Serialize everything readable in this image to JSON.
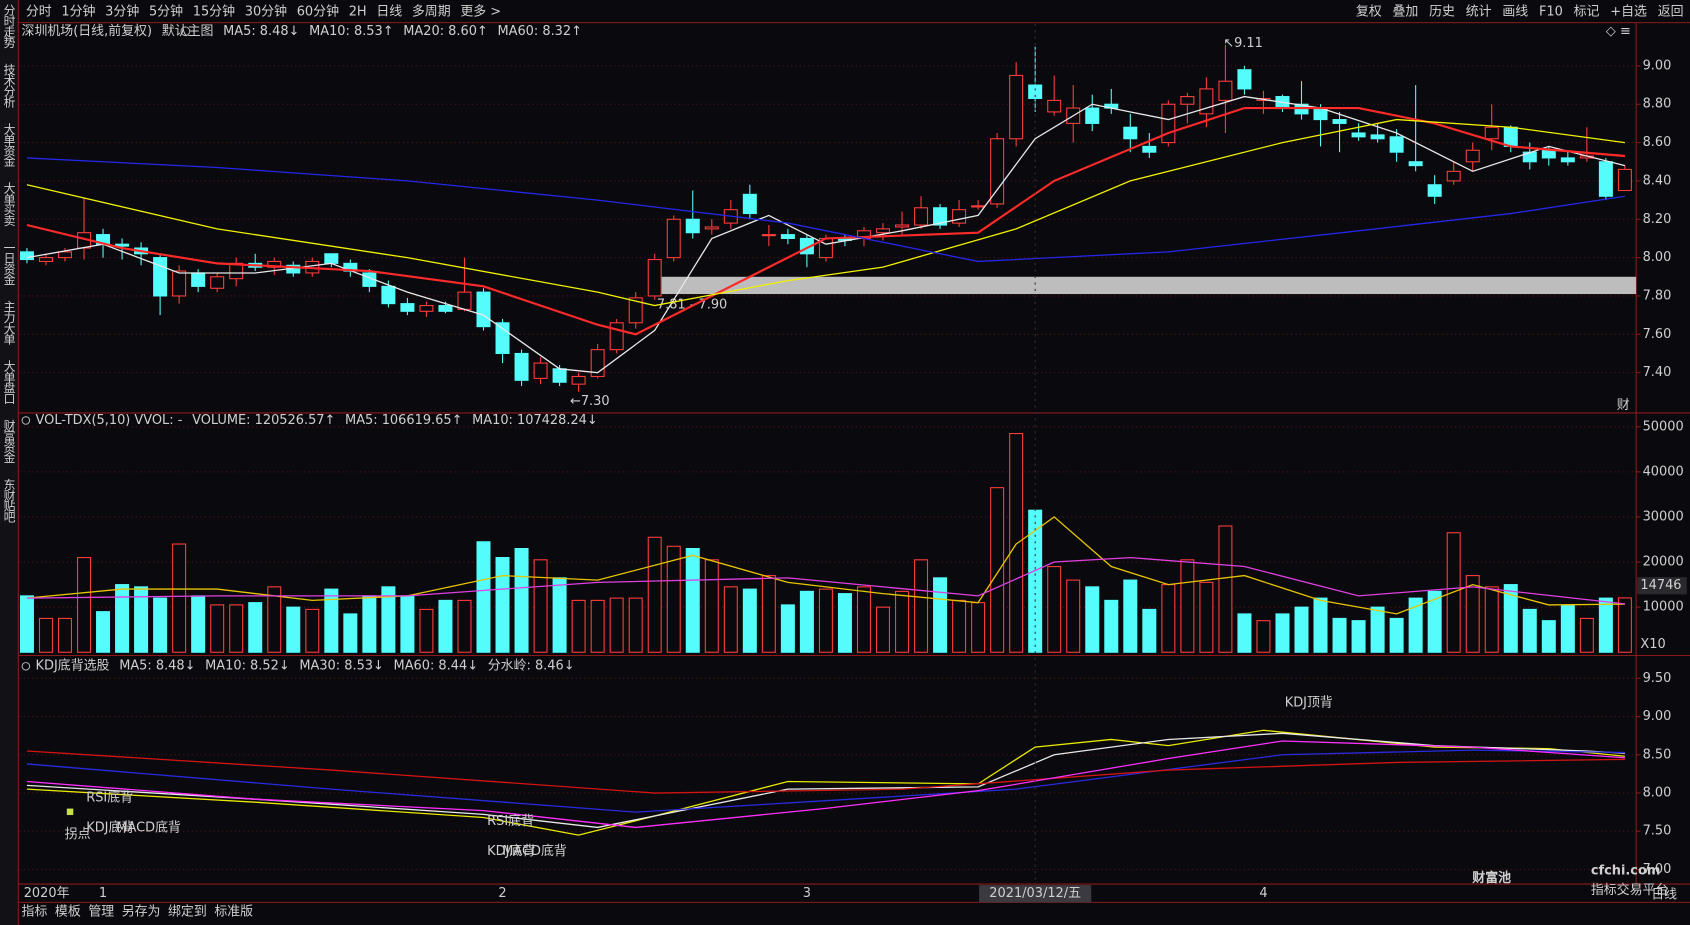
{
  "toolbar": {
    "periods": [
      "分时",
      "1分钟",
      "3分钟",
      "5分钟",
      "15分钟",
      "30分钟",
      "60分钟",
      "2H",
      "日线",
      "多周期",
      "更多 >"
    ],
    "active_period": 8,
    "tools": [
      "复权",
      "叠加",
      "历史",
      "统计",
      "画线",
      "F10",
      "标记",
      "+自选",
      "返回"
    ]
  },
  "sidebar": {
    "items": [
      "分时走势",
      "技术分析",
      "大单资金",
      "大单买卖",
      "一日资金",
      "主力大单",
      "大单盘口",
      "财富资金",
      "东财贴吧"
    ],
    "active": 1
  },
  "chart_data": [
    {
      "type": "candlestick",
      "title": "深圳机场(日线,前复权)",
      "subtitle": "默认主图",
      "up_color": "#ff3c3c",
      "down_color": "#54fcfc",
      "open": [
        8.03,
        7.98,
        8.0,
        8.05,
        8.12,
        8.07,
        8.05,
        8.0,
        7.8,
        7.92,
        7.84,
        7.89,
        7.97,
        7.95,
        7.96,
        7.92,
        8.02,
        7.97,
        7.92,
        7.85,
        7.76,
        7.72,
        7.75,
        7.73,
        7.82,
        7.66,
        7.5,
        7.37,
        7.42,
        7.34,
        7.38,
        7.52,
        7.66,
        7.8,
        8.0,
        8.2,
        8.15,
        8.18,
        8.33,
        8.12,
        8.12,
        8.1,
        8.0,
        8.1,
        8.1,
        8.13,
        8.16,
        8.17,
        8.26,
        8.18,
        8.27,
        8.28,
        8.62,
        8.9,
        8.76,
        8.7,
        8.78,
        8.8,
        8.68,
        8.58,
        8.6,
        8.8,
        8.75,
        8.82,
        8.98,
        8.82,
        8.84,
        8.8,
        8.78,
        8.72,
        8.65,
        8.64,
        8.63,
        8.5,
        8.38,
        8.4,
        8.5,
        8.62,
        8.68,
        8.55,
        8.56,
        8.52,
        8.52,
        8.5,
        8.35
      ],
      "high": [
        8.05,
        8.02,
        8.05,
        8.31,
        8.15,
        8.1,
        8.08,
        8.02,
        7.96,
        7.94,
        7.92,
        8.0,
        8.02,
        8.0,
        7.98,
        8.0,
        8.02,
        7.99,
        7.94,
        7.88,
        7.79,
        7.77,
        7.77,
        8.0,
        7.84,
        7.68,
        7.52,
        7.48,
        7.44,
        7.4,
        7.55,
        7.68,
        7.82,
        8.02,
        8.22,
        8.35,
        8.2,
        8.3,
        8.38,
        8.17,
        8.15,
        8.12,
        8.12,
        8.12,
        8.16,
        8.18,
        8.24,
        8.32,
        8.28,
        8.3,
        8.3,
        8.65,
        9.02,
        9.1,
        8.95,
        8.9,
        8.85,
        8.88,
        8.75,
        8.65,
        8.82,
        8.86,
        8.94,
        9.11,
        9.0,
        8.87,
        8.85,
        8.92,
        8.8,
        8.76,
        8.7,
        8.7,
        8.67,
        8.9,
        8.43,
        8.5,
        8.6,
        8.8,
        8.69,
        8.6,
        8.58,
        8.56,
        8.68,
        8.52,
        8.48
      ],
      "low": [
        7.97,
        7.96,
        7.98,
        7.99,
        8.0,
        7.99,
        7.96,
        7.7,
        7.76,
        7.82,
        7.82,
        7.85,
        7.93,
        7.91,
        7.9,
        7.9,
        7.95,
        7.9,
        7.82,
        7.74,
        7.7,
        7.69,
        7.71,
        7.72,
        7.62,
        7.45,
        7.33,
        7.34,
        7.33,
        7.3,
        7.37,
        7.5,
        7.63,
        7.78,
        7.98,
        8.1,
        8.12,
        8.15,
        8.2,
        8.06,
        8.07,
        7.95,
        7.98,
        8.06,
        8.06,
        8.09,
        8.12,
        8.15,
        8.15,
        8.16,
        8.25,
        8.26,
        8.58,
        8.76,
        8.74,
        8.6,
        8.66,
        8.75,
        8.55,
        8.52,
        8.58,
        8.7,
        8.68,
        8.65,
        8.85,
        8.75,
        8.76,
        8.72,
        8.58,
        8.55,
        8.61,
        8.6,
        8.5,
        8.45,
        8.28,
        8.38,
        8.45,
        8.56,
        8.55,
        8.46,
        8.48,
        8.48,
        8.5,
        8.3,
        8.35
      ],
      "close": [
        7.99,
        8.0,
        8.03,
        8.13,
        8.07,
        8.06,
        8.02,
        7.8,
        7.93,
        7.85,
        7.9,
        7.97,
        7.95,
        7.98,
        7.92,
        7.98,
        7.97,
        7.93,
        7.85,
        7.76,
        7.72,
        7.75,
        7.72,
        7.82,
        7.64,
        7.5,
        7.36,
        7.45,
        7.35,
        7.38,
        7.52,
        7.66,
        7.79,
        7.99,
        8.2,
        8.13,
        8.16,
        8.25,
        8.23,
        8.12,
        8.1,
        8.02,
        8.1,
        8.09,
        8.14,
        8.15,
        8.17,
        8.26,
        8.17,
        8.25,
        8.27,
        8.62,
        8.95,
        8.83,
        8.82,
        8.78,
        8.7,
        8.78,
        8.62,
        8.55,
        8.8,
        8.84,
        8.88,
        8.92,
        8.88,
        8.83,
        8.78,
        8.75,
        8.72,
        8.7,
        8.63,
        8.62,
        8.55,
        8.48,
        8.32,
        8.45,
        8.56,
        8.68,
        8.58,
        8.5,
        8.52,
        8.5,
        8.53,
        8.32,
        8.46
      ],
      "series": [
        {
          "name": "MA5: 8.48↓",
          "color": "#e8e8e8",
          "x": [
            0,
            4,
            8,
            12,
            16,
            20,
            24,
            28,
            30,
            33,
            36,
            39,
            42,
            46,
            50,
            53,
            56,
            60,
            64,
            68,
            72,
            76,
            80,
            84
          ],
          "values": [
            8.0,
            8.07,
            7.92,
            7.92,
            7.97,
            7.82,
            7.7,
            7.42,
            7.4,
            7.62,
            8.1,
            8.22,
            8.07,
            8.14,
            8.22,
            8.62,
            8.8,
            8.72,
            8.84,
            8.78,
            8.65,
            8.45,
            8.58,
            8.48
          ]
        },
        {
          "name": "MA10: 8.53↑",
          "color": "#ff2a2a",
          "x": [
            0,
            5,
            10,
            18,
            24,
            30,
            32,
            38,
            42,
            50,
            54,
            60,
            64,
            70,
            74,
            78,
            84
          ],
          "values": [
            8.17,
            8.05,
            7.97,
            7.93,
            7.85,
            7.65,
            7.6,
            7.9,
            8.1,
            8.13,
            8.4,
            8.65,
            8.78,
            8.78,
            8.7,
            8.58,
            8.53
          ]
        },
        {
          "name": "MA20: 8.60↑",
          "color": "#f0f000",
          "x": [
            0,
            10,
            20,
            30,
            33,
            40,
            45,
            52,
            58,
            66,
            72,
            78,
            84
          ],
          "values": [
            8.38,
            8.15,
            8.0,
            7.82,
            7.75,
            7.88,
            7.95,
            8.15,
            8.4,
            8.6,
            8.72,
            8.68,
            8.6
          ]
        },
        {
          "name": "MA60: 8.32↑",
          "color": "#2626e6",
          "x": [
            0,
            10,
            20,
            30,
            40,
            50,
            60,
            70,
            78,
            84
          ],
          "values": [
            8.52,
            8.47,
            8.4,
            8.3,
            8.18,
            7.98,
            8.03,
            8.14,
            8.23,
            8.32
          ]
        }
      ],
      "ylim": [
        7.19,
        9.22
      ],
      "yticks": [
        {
          "value": 7.4,
          "label": "7.40"
        },
        {
          "value": 7.6,
          "label": "7.60"
        },
        {
          "value": 7.8,
          "label": "7.80"
        },
        {
          "value": 8.0,
          "label": "8.00"
        },
        {
          "value": 8.2,
          "label": "8.20"
        },
        {
          "value": 8.4,
          "label": "8.40"
        },
        {
          "value": 8.6,
          "label": "8.60"
        },
        {
          "value": 8.8,
          "label": "8.80"
        },
        {
          "value": 9.0,
          "label": "9.00"
        }
      ],
      "grid": true,
      "band": {
        "start": 33,
        "low": 7.81,
        "high": 7.9,
        "label": "7.81 - 7.90",
        "color": "#bdbdbd"
      },
      "annotations": [
        {
          "index": 29,
          "at": "low",
          "value": 7.3,
          "label": "←7.30"
        },
        {
          "index": 63,
          "at": "high",
          "value": 9.11,
          "label": "↖9.11"
        }
      ],
      "corner_label": "财"
    },
    {
      "type": "bar",
      "title": "VOL-TDX(5,10) VVOL: -",
      "legend": "VOLUME: 120526.57↑",
      "legend_color": "#e8c400",
      "values": [
        12500,
        7500,
        7500,
        21000,
        9000,
        15000,
        14500,
        12000,
        24000,
        12500,
        10500,
        10500,
        11000,
        14500,
        10000,
        9500,
        14000,
        8500,
        12500,
        14500,
        12500,
        9500,
        11500,
        11500,
        24500,
        21000,
        23000,
        20500,
        16500,
        11500,
        11500,
        12000,
        12000,
        25500,
        23500,
        23000,
        20500,
        14500,
        14000,
        17000,
        10500,
        13500,
        14000,
        13000,
        14500,
        10000,
        13500,
        20500,
        16500,
        11500,
        11000,
        36500,
        48500,
        31500,
        19000,
        16000,
        14500,
        11500,
        16000,
        9500,
        15000,
        20500,
        15500,
        28000,
        8500,
        7000,
        8500,
        10000,
        12000,
        7500,
        7000,
        10000,
        7500,
        12000,
        13500,
        26500,
        17000,
        14500,
        15000,
        9500,
        7000,
        10500,
        7500,
        12000,
        12053
      ],
      "series": [
        {
          "name": "MA5: 106619.65↑",
          "color": "#e8c400",
          "x": [
            0,
            5,
            10,
            15,
            20,
            25,
            30,
            35,
            40,
            45,
            50,
            52,
            54,
            57,
            60,
            64,
            68,
            72,
            76,
            80,
            84
          ],
          "values": [
            12000,
            14000,
            14000,
            11500,
            12500,
            17000,
            16000,
            21500,
            15500,
            13000,
            11000,
            24000,
            30000,
            19000,
            15000,
            17000,
            11500,
            8500,
            15000,
            10500,
            10662
          ]
        },
        {
          "name": "MA10: 107428.24↓",
          "color": "#e040e0",
          "x": [
            0,
            10,
            20,
            30,
            40,
            50,
            54,
            58,
            64,
            70,
            76,
            84
          ],
          "values": [
            12000,
            12500,
            12500,
            15500,
            16500,
            12500,
            20000,
            21000,
            19000,
            12500,
            14500,
            10743
          ]
        }
      ],
      "ylim": [
        0,
        52600
      ],
      "yticks": [
        10000,
        20000,
        30000,
        40000,
        50000
      ],
      "grid": true,
      "marker": {
        "value": 14746
      },
      "unit": "X10"
    },
    {
      "type": "line",
      "title": "KDJ底背选股",
      "series": [
        {
          "name": "MA5: 8.48↓",
          "color": "#e8e800",
          "x": [
            0,
            12,
            24,
            29,
            33,
            40,
            50,
            53,
            57,
            60,
            65,
            74,
            80,
            84
          ],
          "values": [
            8.05,
            7.88,
            7.68,
            7.45,
            7.7,
            8.15,
            8.12,
            8.6,
            8.7,
            8.62,
            8.82,
            8.6,
            8.58,
            8.48
          ]
        },
        {
          "name": "MA10: 8.52↓",
          "color": "#e8e8e8",
          "x": [
            0,
            12,
            24,
            30,
            34,
            40,
            50,
            54,
            60,
            66,
            74,
            82,
            84
          ],
          "values": [
            8.1,
            7.92,
            7.72,
            7.55,
            7.75,
            8.05,
            8.08,
            8.5,
            8.7,
            8.78,
            8.62,
            8.55,
            8.52
          ]
        },
        {
          "name": "MA30: 8.53↓",
          "color": "#2a2ae0",
          "x": [
            0,
            16,
            32,
            42,
            52,
            66,
            76,
            84
          ],
          "values": [
            8.38,
            8.05,
            7.75,
            7.9,
            8.05,
            8.5,
            8.56,
            8.53
          ]
        },
        {
          "name": "MA60: 8.44↓",
          "color": "#d41414",
          "x": [
            0,
            16,
            33,
            46,
            60,
            72,
            84
          ],
          "values": [
            8.55,
            8.3,
            8.0,
            8.05,
            8.3,
            8.4,
            8.44
          ]
        },
        {
          "name": "分水岭: 8.46↓",
          "color": "#ff30ff",
          "x": [
            0,
            12,
            24,
            32,
            42,
            50,
            60,
            66,
            76,
            84
          ],
          "values": [
            8.15,
            7.92,
            7.77,
            7.55,
            7.8,
            8.03,
            8.45,
            8.68,
            8.6,
            8.46
          ]
        }
      ],
      "ylim": [
        6.81,
        9.77
      ],
      "yticks": [
        {
          "value": 7.0,
          "label": "7.00"
        },
        {
          "value": 7.5,
          "label": "7.50"
        },
        {
          "value": 8.0,
          "label": "8.00"
        },
        {
          "value": 8.5,
          "label": "8.50"
        },
        {
          "value": 9.0,
          "label": "9.00"
        },
        {
          "value": 9.5,
          "label": "9.50"
        }
      ],
      "grid": true,
      "signals": [
        {
          "text": "RSI底背",
          "color": "#40d8d8"
        },
        {
          "text": "拐点",
          "color": "#9ab030"
        },
        {
          "text": "KDJ底背",
          "color": "#e8e800"
        },
        {
          "text": "MACD底背",
          "color": "#30c030"
        },
        {
          "text": "RSI底背",
          "color": "#40d8d8"
        },
        {
          "text": "KDJ底背",
          "color": "#e8e800"
        },
        {
          "text": "MACD底背",
          "color": "#30c030"
        },
        {
          "text": "KDJ顶背",
          "color": "#e0e0e0"
        }
      ]
    }
  ],
  "date_axis": {
    "year": "2020年",
    "labels": [
      {
        "index": 4,
        "label": "1"
      },
      {
        "index": 25,
        "label": "2"
      },
      {
        "index": 41,
        "label": "3"
      },
      {
        "index": 65,
        "label": "4"
      }
    ],
    "cursor": {
      "index": 53,
      "label": "2021/03/12/五"
    }
  },
  "bottom_bar": {
    "tabs": [
      "指标",
      "模板",
      "管理",
      "另存为",
      "绑定到",
      "标准版"
    ],
    "active": 2,
    "period": "日线"
  },
  "watermark": {
    "brand": "财富池",
    "site": "cfchi.com",
    "slogan": "指标交易平台"
  }
}
